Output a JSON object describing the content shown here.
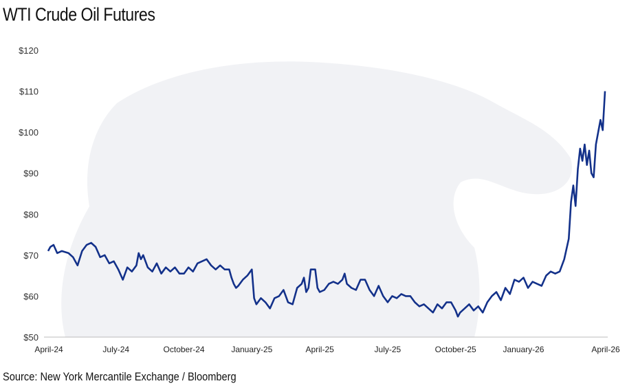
{
  "title": "WTI Crude Oil Futures",
  "source": "Source: New York Mercantile Exchange / Bloomberg",
  "colors": {
    "line": "#13318a",
    "axis": "#bbbbbb",
    "watermark": "#f1f2f5"
  },
  "chart_data": {
    "type": "line",
    "title": "WTI Crude Oil Futures",
    "xlabel": "",
    "ylabel": "",
    "ylim": [
      50,
      120
    ],
    "y_ticks": [
      "$50",
      "$60",
      "$70",
      "$80",
      "$90",
      "$100",
      "$110",
      "$120"
    ],
    "y_tick_values": [
      50,
      60,
      70,
      80,
      90,
      100,
      110,
      120
    ],
    "x_ticks": [
      "April-24",
      "July-24",
      "October-24",
      "January-25",
      "April-25",
      "July-25",
      "October-25",
      "January-26",
      "April-26"
    ],
    "grid": false,
    "legend": "none",
    "series": [
      {
        "values_note": "",
        "x": [
          "2024-04",
          "2024-05",
          "2024-06",
          "2024-07",
          "2024-08",
          "2024-09",
          "2024-10",
          "2024-11",
          "2024-12",
          "2025-01",
          "2025-02",
          "2025-03",
          "2025-04",
          "2025-05",
          "2025-06",
          "2025-07",
          "2025-08",
          "2025-09",
          "2025-10",
          "2025-11",
          "2025-12",
          "2026-01",
          "2026-02",
          "2026-03",
          "2026-04"
        ],
        "points": [
          [
            0.0,
            71.0
          ],
          [
            0.05,
            72.0
          ],
          [
            0.12,
            72.5
          ],
          [
            0.2,
            70.5
          ],
          [
            0.3,
            71.0
          ],
          [
            0.45,
            70.5
          ],
          [
            0.55,
            69.5
          ],
          [
            0.65,
            67.5
          ],
          [
            0.75,
            71.0
          ],
          [
            0.85,
            72.5
          ],
          [
            0.95,
            73.0
          ],
          [
            1.05,
            72.0
          ],
          [
            1.15,
            69.5
          ],
          [
            1.25,
            70.0
          ],
          [
            1.35,
            68.0
          ],
          [
            1.45,
            68.5
          ],
          [
            1.55,
            66.5
          ],
          [
            1.65,
            64.0
          ],
          [
            1.75,
            67.0
          ],
          [
            1.85,
            66.0
          ],
          [
            1.95,
            67.5
          ],
          [
            2.0,
            70.5
          ],
          [
            2.05,
            69.0
          ],
          [
            2.1,
            70.0
          ],
          [
            2.2,
            67.0
          ],
          [
            2.3,
            66.0
          ],
          [
            2.4,
            68.0
          ],
          [
            2.5,
            65.5
          ],
          [
            2.6,
            67.0
          ],
          [
            2.7,
            66.0
          ],
          [
            2.8,
            67.0
          ],
          [
            2.9,
            65.5
          ],
          [
            3.0,
            65.5
          ],
          [
            3.1,
            67.0
          ],
          [
            3.2,
            66.0
          ],
          [
            3.3,
            68.0
          ],
          [
            3.4,
            68.5
          ],
          [
            3.5,
            69.0
          ],
          [
            3.6,
            67.5
          ],
          [
            3.7,
            66.5
          ],
          [
            3.8,
            67.5
          ],
          [
            3.9,
            66.5
          ],
          [
            4.0,
            66.5
          ],
          [
            4.05,
            64.5
          ],
          [
            4.1,
            63.0
          ],
          [
            4.15,
            62.0
          ],
          [
            4.2,
            62.5
          ],
          [
            4.3,
            64.0
          ],
          [
            4.4,
            65.0
          ],
          [
            4.5,
            66.5
          ],
          [
            4.55,
            59.5
          ],
          [
            4.6,
            58.0
          ],
          [
            4.7,
            59.5
          ],
          [
            4.8,
            58.5
          ],
          [
            4.9,
            57.0
          ],
          [
            5.0,
            59.5
          ],
          [
            5.1,
            60.0
          ],
          [
            5.2,
            61.5
          ],
          [
            5.3,
            58.5
          ],
          [
            5.4,
            58.0
          ],
          [
            5.5,
            62.0
          ],
          [
            5.6,
            63.0
          ],
          [
            5.65,
            64.5
          ],
          [
            5.7,
            61.0
          ],
          [
            5.75,
            62.0
          ],
          [
            5.8,
            66.5
          ],
          [
            5.9,
            66.5
          ],
          [
            5.95,
            62.0
          ],
          [
            6.0,
            61.0
          ],
          [
            6.1,
            61.5
          ],
          [
            6.2,
            63.0
          ],
          [
            6.3,
            63.5
          ],
          [
            6.4,
            63.0
          ],
          [
            6.5,
            64.0
          ],
          [
            6.55,
            65.5
          ],
          [
            6.6,
            63.0
          ],
          [
            6.7,
            62.0
          ],
          [
            6.8,
            61.5
          ],
          [
            6.9,
            64.0
          ],
          [
            7.0,
            64.0
          ],
          [
            7.1,
            61.5
          ],
          [
            7.2,
            60.0
          ],
          [
            7.3,
            62.5
          ],
          [
            7.4,
            60.0
          ],
          [
            7.5,
            58.5
          ],
          [
            7.6,
            60.0
          ],
          [
            7.7,
            59.5
          ],
          [
            7.8,
            60.5
          ],
          [
            7.9,
            60.0
          ],
          [
            8.0,
            60.0
          ],
          [
            8.1,
            58.5
          ],
          [
            8.2,
            57.5
          ],
          [
            8.3,
            58.0
          ],
          [
            8.4,
            57.0
          ],
          [
            8.5,
            56.0
          ],
          [
            8.6,
            58.0
          ],
          [
            8.7,
            57.0
          ],
          [
            8.8,
            58.5
          ],
          [
            8.9,
            58.5
          ],
          [
            9.0,
            56.5
          ],
          [
            9.05,
            55.0
          ],
          [
            9.1,
            56.0
          ],
          [
            9.2,
            57.0
          ],
          [
            9.3,
            58.0
          ],
          [
            9.4,
            56.5
          ],
          [
            9.5,
            57.5
          ],
          [
            9.6,
            56.0
          ],
          [
            9.7,
            58.5
          ],
          [
            9.8,
            60.0
          ],
          [
            9.9,
            61.0
          ],
          [
            10.0,
            59.0
          ],
          [
            10.1,
            62.0
          ],
          [
            10.2,
            60.5
          ],
          [
            10.3,
            64.0
          ],
          [
            10.4,
            63.5
          ],
          [
            10.5,
            64.5
          ],
          [
            10.6,
            62.0
          ],
          [
            10.7,
            63.5
          ],
          [
            10.8,
            63.0
          ],
          [
            10.9,
            62.5
          ],
          [
            11.0,
            65.0
          ],
          [
            11.1,
            66.0
          ],
          [
            11.2,
            65.5
          ],
          [
            11.3,
            66.0
          ],
          [
            11.4,
            69.0
          ],
          [
            11.5,
            74.0
          ],
          [
            11.55,
            83.0
          ],
          [
            11.6,
            87.0
          ],
          [
            11.65,
            82.0
          ],
          [
            11.7,
            91.0
          ],
          [
            11.75,
            96.0
          ],
          [
            11.8,
            93.0
          ],
          [
            11.85,
            97.0
          ],
          [
            11.9,
            92.0
          ],
          [
            11.95,
            95.5
          ],
          [
            12.0,
            90.0
          ],
          [
            12.05,
            89.0
          ],
          [
            12.1,
            97.0
          ],
          [
            12.15,
            100.0
          ],
          [
            12.2,
            103.0
          ],
          [
            12.25,
            100.5
          ],
          [
            12.3,
            110.0
          ]
        ]
      }
    ]
  }
}
